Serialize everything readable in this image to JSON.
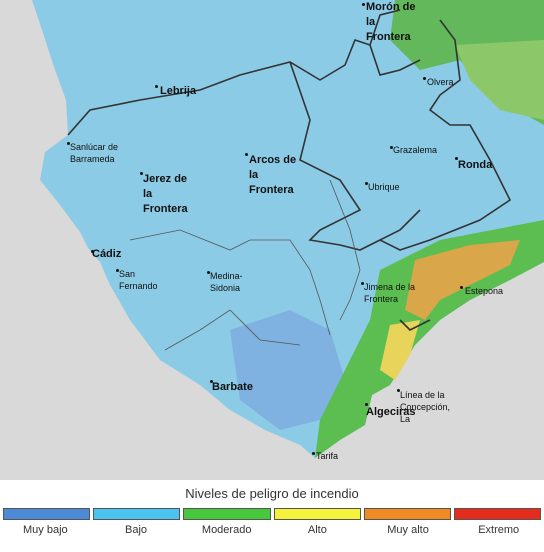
{
  "map": {
    "places": [
      {
        "name": "Morón de la Frontera"
      },
      {
        "name": "Lebrija"
      },
      {
        "name": "Olvera"
      },
      {
        "name": "Sanlúcar de Barrameda"
      },
      {
        "name": "Grazalema"
      },
      {
        "name": "Ronda"
      },
      {
        "name": "Arcos de la Frontera"
      },
      {
        "name": "Jerez de la Frontera"
      },
      {
        "name": "Ubrique"
      },
      {
        "name": "Cádiz"
      },
      {
        "name": "San Fernando"
      },
      {
        "name": "Medina-Sidonia"
      },
      {
        "name": "Jimena de la Frontera"
      },
      {
        "name": "Estepona"
      },
      {
        "name": "Barbate"
      },
      {
        "name": "Línea de la Concepción, La"
      },
      {
        "name": "Algeciras"
      },
      {
        "name": "Tarifa"
      }
    ]
  },
  "legend": {
    "title": "Niveles de peligro de incendio",
    "items": [
      {
        "label": "Muy bajo",
        "color": "#4d8ad6"
      },
      {
        "label": "Bajo",
        "color": "#4cc3ee"
      },
      {
        "label": "Moderado",
        "color": "#47c83c"
      },
      {
        "label": "Alto",
        "color": "#f4f23a"
      },
      {
        "label": "Muy alto",
        "color": "#f08a22"
      },
      {
        "label": "Extremo",
        "color": "#e52b1c"
      }
    ]
  }
}
